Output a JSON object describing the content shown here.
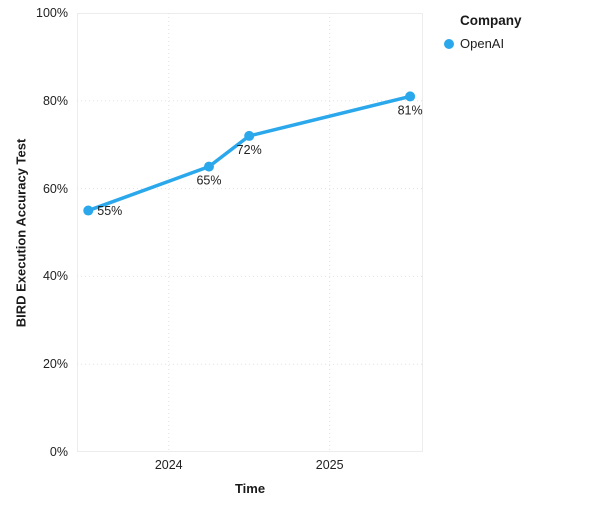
{
  "chart_data": {
    "type": "line",
    "title": "",
    "xlabel": "Time",
    "ylabel": "BIRD Execution Accuracy Test",
    "legend_title": "Company",
    "legend_position": "outside-top-right",
    "grid": "dotted",
    "xlim": [
      2023.43,
      2025.58
    ],
    "ylim": [
      0,
      100
    ],
    "x_ticks": [
      {
        "value": 2024,
        "label": "2024"
      },
      {
        "value": 2025,
        "label": "2025"
      }
    ],
    "y_ticks": [
      {
        "value": 0,
        "label": "0%"
      },
      {
        "value": 20,
        "label": "20%"
      },
      {
        "value": 40,
        "label": "40%"
      },
      {
        "value": 60,
        "label": "60%"
      },
      {
        "value": 80,
        "label": "80%"
      },
      {
        "value": 100,
        "label": "100%"
      }
    ],
    "series": [
      {
        "name": "OpenAI",
        "color": "#2BA8EC",
        "x": [
          2023.5,
          2024.25,
          2024.5,
          2025.5
        ],
        "y": [
          55,
          65,
          72,
          81
        ],
        "point_labels": [
          "55%",
          "65%",
          "72%",
          "81%"
        ],
        "point_label_positions": [
          "right",
          "below",
          "below",
          "below"
        ]
      }
    ]
  },
  "colors": {
    "accent": "#2BA8EC",
    "grid": "#e2e2e2",
    "plot_border": "#ececec",
    "text": "#212121"
  }
}
